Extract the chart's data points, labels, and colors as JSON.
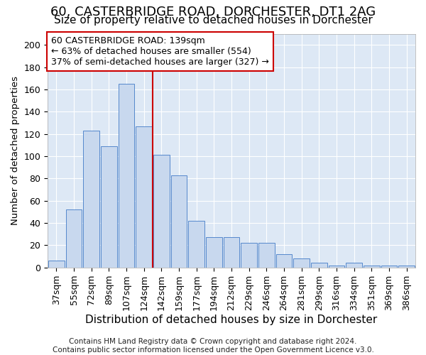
{
  "title": "60, CASTERBRIDGE ROAD, DORCHESTER, DT1 2AG",
  "subtitle": "Size of property relative to detached houses in Dorchester",
  "xlabel": "Distribution of detached houses by size in Dorchester",
  "ylabel": "Number of detached properties",
  "categories": [
    "37sqm",
    "55sqm",
    "72sqm",
    "89sqm",
    "107sqm",
    "124sqm",
    "142sqm",
    "159sqm",
    "177sqm",
    "194sqm",
    "212sqm",
    "229sqm",
    "246sqm",
    "264sqm",
    "281sqm",
    "299sqm",
    "316sqm",
    "334sqm",
    "351sqm",
    "369sqm",
    "386sqm"
  ],
  "values": [
    6,
    52,
    123,
    109,
    165,
    127,
    101,
    83,
    42,
    27,
    27,
    22,
    22,
    12,
    8,
    4,
    2,
    4,
    2,
    2,
    2
  ],
  "bar_color": "#c8d8ee",
  "bar_edge_color": "#5588cc",
  "vline_color": "#cc0000",
  "vline_index": 5,
  "annotation_line1": "60 CASTERBRIDGE ROAD: 139sqm",
  "annotation_line2": "← 63% of detached houses are smaller (554)",
  "annotation_line3": "37% of semi-detached houses are larger (327) →",
  "annotation_box_color": "#ffffff",
  "annotation_box_edge": "#cc0000",
  "ylim": [
    0,
    210
  ],
  "yticks": [
    0,
    20,
    40,
    60,
    80,
    100,
    120,
    140,
    160,
    180,
    200
  ],
  "background_color": "#dde8f5",
  "grid_color": "#ffffff",
  "footer": "Contains HM Land Registry data © Crown copyright and database right 2024.\nContains public sector information licensed under the Open Government Licence v3.0.",
  "title_fontsize": 13,
  "subtitle_fontsize": 11,
  "xlabel_fontsize": 11,
  "ylabel_fontsize": 9.5,
  "tick_fontsize": 9,
  "annotation_fontsize": 9,
  "footer_fontsize": 7.5
}
